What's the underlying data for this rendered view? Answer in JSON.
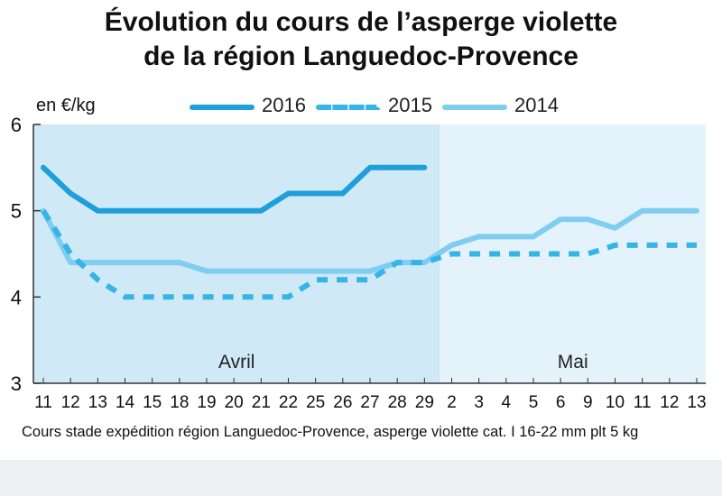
{
  "chart_data": {
    "type": "line",
    "title_line1": "Évolution du cours de l’asperge violette",
    "title_line2": "de la région Languedoc-Provence",
    "ylabel": "en €/kg",
    "ylim": [
      3,
      6
    ],
    "yticks": [
      "3",
      "4",
      "5",
      "6"
    ],
    "categories": [
      "11",
      "12",
      "13",
      "14",
      "15",
      "18",
      "19",
      "20",
      "21",
      "22",
      "25",
      "26",
      "27",
      "28",
      "29",
      "2",
      "3",
      "4",
      "5",
      "6",
      "9",
      "10",
      "11",
      "12",
      "13"
    ],
    "month_labels": [
      {
        "label": "Avril",
        "from": 0,
        "to": 14
      },
      {
        "label": "Mai",
        "from": 15,
        "to": 24
      }
    ],
    "series": [
      {
        "name": "2016",
        "color": "#1e9fd8",
        "style": "solid",
        "values": [
          5.5,
          5.2,
          5.0,
          5.0,
          5.0,
          5.0,
          5.0,
          5.0,
          5.0,
          5.2,
          5.2,
          5.2,
          5.5,
          5.5,
          5.5,
          null,
          null,
          null,
          null,
          null,
          null,
          null,
          null,
          null,
          null
        ]
      },
      {
        "name": "2015",
        "color": "#37b4e6",
        "style": "dashed",
        "values": [
          5.0,
          4.5,
          4.2,
          4.0,
          4.0,
          4.0,
          4.0,
          4.0,
          4.0,
          4.0,
          4.2,
          4.2,
          4.2,
          4.4,
          4.4,
          4.5,
          4.5,
          4.5,
          4.5,
          4.5,
          4.5,
          4.6,
          4.6,
          4.6,
          4.6
        ]
      },
      {
        "name": "2014",
        "color": "#7fcdf0",
        "style": "solid",
        "values": [
          5.0,
          4.4,
          4.4,
          4.4,
          4.4,
          4.4,
          4.3,
          4.3,
          4.3,
          4.3,
          4.3,
          4.3,
          4.3,
          4.4,
          4.4,
          4.6,
          4.7,
          4.7,
          4.7,
          4.9,
          4.9,
          4.8,
          5.0,
          5.0,
          5.0
        ]
      }
    ],
    "footnote": "Cours stade expédition région Languedoc-Provence, asperge violette cat. I 16-22 mm plt 5 kg"
  }
}
